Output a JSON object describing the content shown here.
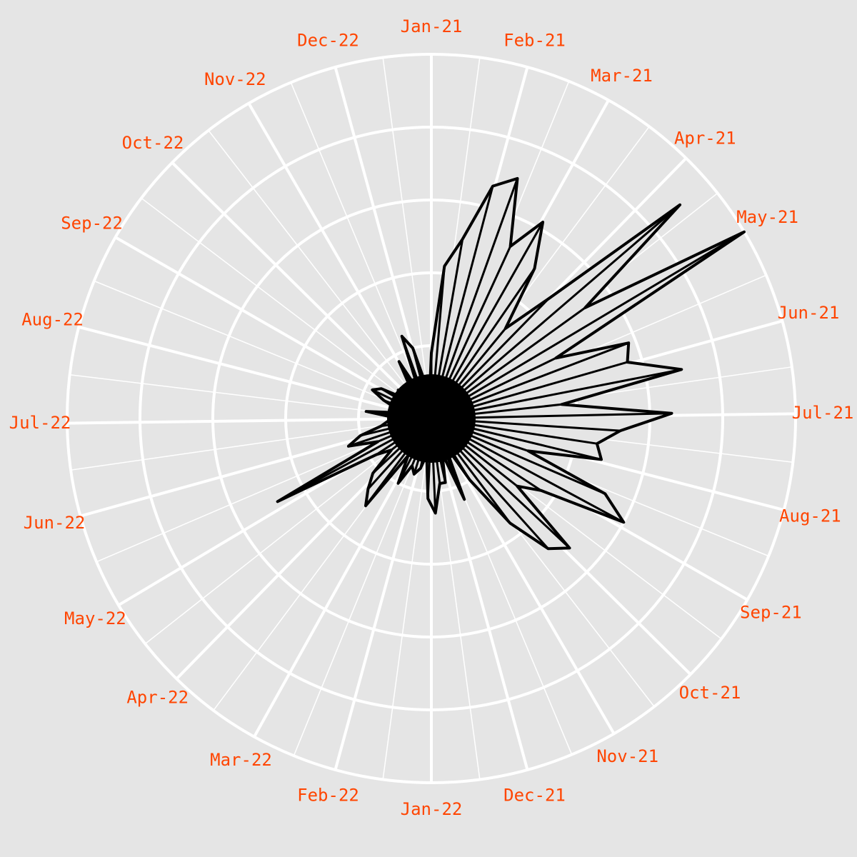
{
  "chart_data": {
    "type": "polar-line",
    "title": "",
    "xlabel": "",
    "ylabel": "",
    "start_date": "2021-01-01",
    "end_date": "2022-12-31",
    "month_labels": [
      "Jan-21",
      "Feb-21",
      "Mar-21",
      "Apr-21",
      "May-21",
      "Jun-21",
      "Jul-21",
      "Aug-21",
      "Sep-21",
      "Oct-21",
      "Nov-21",
      "Dec-21",
      "Jan-22",
      "Feb-22",
      "Mar-22",
      "Apr-22",
      "May-22",
      "Jun-22",
      "Jul-22",
      "Aug-22",
      "Sep-22",
      "Oct-22",
      "Nov-22",
      "Dec-22"
    ],
    "r_range": [
      0,
      5
    ],
    "r_gridlines": [
      1,
      2,
      3,
      4,
      5
    ],
    "grid": true,
    "fill_color": "#e5e5e5",
    "line_color": "#000000",
    "label_color": "#ff4500",
    "background_color": "#e5e5e5",
    "grid_color": "#ffffff",
    "series": [
      {
        "interval_days": 10,
        "values": [
          0.9,
          2.1,
          2.5,
          3.3,
          3.5,
          2.6,
          3.1,
          2.5,
          1.6,
          2.3,
          4.5,
          2.6,
          5.0,
          1.9,
          2.9,
          2.8,
          3.5,
          1.8,
          3.3,
          2.6,
          2.3,
          2.4,
          1.4,
          2.6,
          3.0,
          1.8,
          1.5,
          2.6,
          2.4,
          1.8,
          1.0,
          0.4,
          1.2,
          0.5,
          0.9,
          0.9,
          1.3,
          1.1,
          0.5,
          0.7,
          0.8,
          0.7,
          1.0,
          0.6,
          1.5,
          1.3,
          1.1,
          0.7,
          0.9,
          2.4,
          0.8,
          1.2,
          1.0,
          0.7,
          0.6,
          0.5,
          0.9,
          0.4,
          0.5,
          0.7,
          0.9,
          0.8,
          0.5,
          0.6,
          0.4,
          0.3,
          0.5,
          0.9,
          0.4,
          1.2,
          1.0,
          0.5,
          0.3
        ]
      }
    ]
  }
}
